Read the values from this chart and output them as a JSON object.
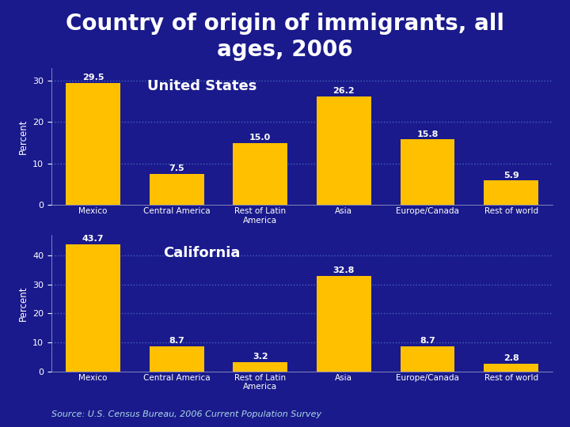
{
  "title": "Country of origin of immigrants, all\nages, 2006",
  "title_fontsize": 20,
  "title_color": "#FFFFFF",
  "background_color": "#1a1a8c",
  "categories": [
    "Mexico",
    "Central America",
    "Rest of Latin\nAmerica",
    "Asia",
    "Europe/Canada",
    "Rest of world"
  ],
  "us_values": [
    29.5,
    7.5,
    15.0,
    26.2,
    15.8,
    5.9
  ],
  "ca_values": [
    43.7,
    8.7,
    3.2,
    32.8,
    8.7,
    2.8
  ],
  "bar_color": "#FFC000",
  "us_label": "United States",
  "ca_label": "California",
  "ylabel": "Percent",
  "us_yticks": [
    0.0,
    10.0,
    20.0,
    30.0
  ],
  "ca_yticks": [
    0.0,
    10.0,
    20.0,
    30.0,
    40.0
  ],
  "us_ylim": [
    0,
    33
  ],
  "ca_ylim": [
    0,
    47
  ],
  "source_text": "Source: U.S. Census Bureau, 2006 Current Population Survey",
  "source_color": "#ADD8E6",
  "axis_label_color": "#FFFFFF",
  "tick_color": "#FFFFFF",
  "grid_color": "#4466BB",
  "value_label_color": "#FFFFFF",
  "region_label_color": "#FFFFFF",
  "region_label_fontsize": 13,
  "chart_bg_color": "#1a1a8c",
  "spine_color": "#AAAACC"
}
